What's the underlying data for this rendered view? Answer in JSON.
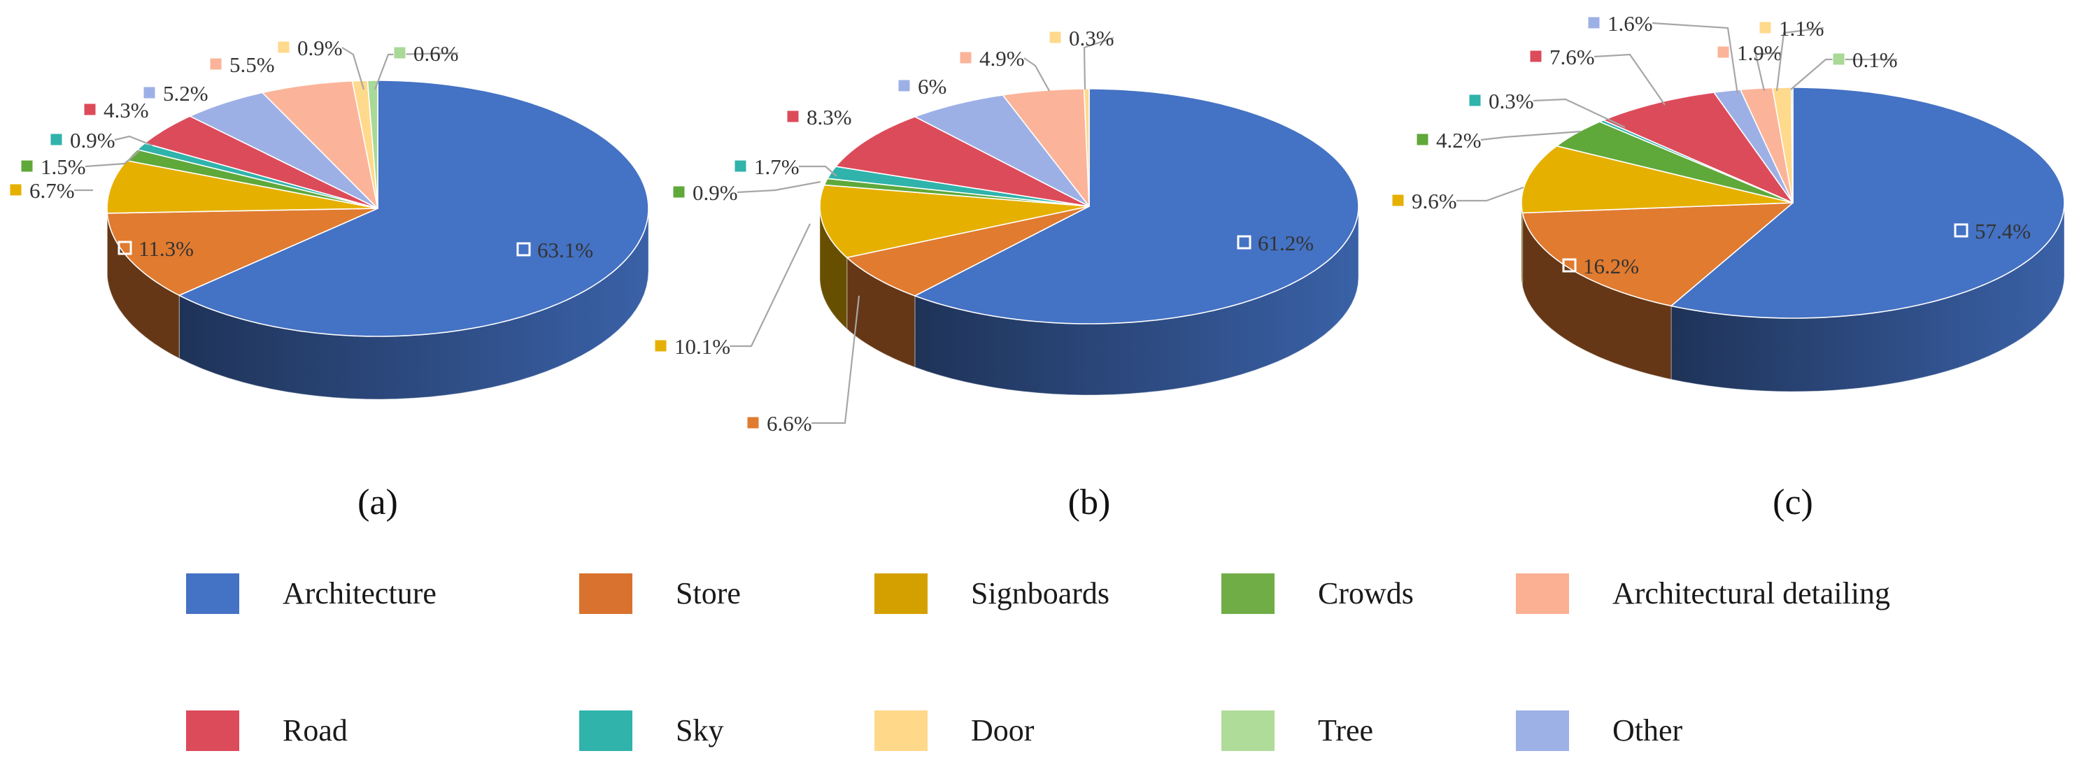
{
  "chart_data": [
    {
      "type": "pie",
      "panel_label": "(a)",
      "slices": [
        {
          "name": "Architecture",
          "value": 63.1,
          "label": "63.1%"
        },
        {
          "name": "Store",
          "value": 11.3,
          "label": "11.3%"
        },
        {
          "name": "Signboards",
          "value": 6.7,
          "label": "6.7%"
        },
        {
          "name": "Crowds",
          "value": 1.5,
          "label": "1.5%"
        },
        {
          "name": "Sky",
          "value": 0.9,
          "label": "0.9%"
        },
        {
          "name": "Road",
          "value": 4.3,
          "label": "4.3%"
        },
        {
          "name": "Other",
          "value": 5.2,
          "label": "5.2%"
        },
        {
          "name": "Architectural detailing",
          "value": 5.5,
          "label": "5.5%"
        },
        {
          "name": "Door",
          "value": 0.9,
          "label": "0.9%"
        },
        {
          "name": "Tree",
          "value": 0.6,
          "label": "0.6%"
        }
      ]
    },
    {
      "type": "pie",
      "panel_label": "(b)",
      "slices": [
        {
          "name": "Architecture",
          "value": 61.2,
          "label": "61.2%"
        },
        {
          "name": "Store",
          "value": 6.6,
          "label": "6.6%"
        },
        {
          "name": "Signboards",
          "value": 10.1,
          "label": "10.1%"
        },
        {
          "name": "Crowds",
          "value": 0.9,
          "label": "0.9%"
        },
        {
          "name": "Sky",
          "value": 1.7,
          "label": "1.7%"
        },
        {
          "name": "Road",
          "value": 8.3,
          "label": "8.3%"
        },
        {
          "name": "Other",
          "value": 6,
          "label": "6%"
        },
        {
          "name": "Architectural detailing",
          "value": 4.9,
          "label": "4.9%"
        },
        {
          "name": "Door",
          "value": 0.3,
          "label": "0.3%"
        }
      ]
    },
    {
      "type": "pie",
      "panel_label": "(c)",
      "slices": [
        {
          "name": "Architecture",
          "value": 57.4,
          "label": "57.4%"
        },
        {
          "name": "Store",
          "value": 16.2,
          "label": "16.2%"
        },
        {
          "name": "Signboards",
          "value": 9.6,
          "label": "9.6%"
        },
        {
          "name": "Crowds",
          "value": 4.2,
          "label": "4.2%"
        },
        {
          "name": "Sky",
          "value": 0.3,
          "label": "0.3%"
        },
        {
          "name": "Road",
          "value": 7.6,
          "label": "7.6%"
        },
        {
          "name": "Other",
          "value": 1.6,
          "label": "1.6%"
        },
        {
          "name": "Architectural detailing",
          "value": 1.9,
          "label": "1.9%"
        },
        {
          "name": "Door",
          "value": 1.1,
          "label": "1.1%"
        },
        {
          "name": "Tree",
          "value": 0.1,
          "label": "0.1%"
        }
      ]
    }
  ],
  "legend": {
    "placement": "bottom",
    "items": [
      {
        "name": "Architecture",
        "color": "#4472C4"
      },
      {
        "name": "Store",
        "color": "#D9722E"
      },
      {
        "name": "Signboards",
        "color": "#D4A000"
      },
      {
        "name": "Crowds",
        "color": "#70AD47"
      },
      {
        "name": "Architectural detailing",
        "color": "#FBB093"
      },
      {
        "name": "Road",
        "color": "#DC4B5A"
      },
      {
        "name": "Sky",
        "color": "#2FB3AB"
      },
      {
        "name": "Door",
        "color": "#FFD88A"
      },
      {
        "name": "Tree",
        "color": "#B0DC9A"
      },
      {
        "name": "Other",
        "color": "#9DB1E6"
      }
    ]
  },
  "colors": {
    "Architecture": "#4472C4",
    "Store": "#E07B30",
    "Signboards": "#E6B000",
    "Crowds": "#5FA83A",
    "Architectural detailing": "#FBB499",
    "Road": "#DC4B5A",
    "Sky": "#2FB3AB",
    "Door": "#FFD98C",
    "Tree": "#A8D996",
    "Other": "#9DB0E6"
  }
}
